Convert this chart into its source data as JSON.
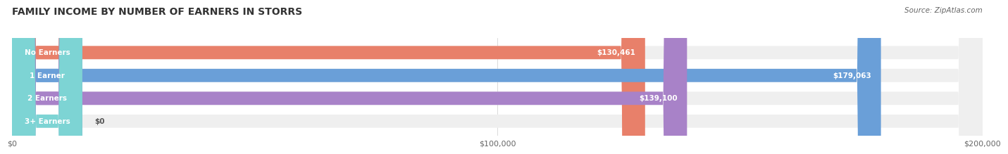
{
  "title": "FAMILY INCOME BY NUMBER OF EARNERS IN STORRS",
  "source": "Source: ZipAtlas.com",
  "categories": [
    "No Earners",
    "1 Earner",
    "2 Earners",
    "3+ Earners"
  ],
  "values": [
    130461,
    179063,
    139100,
    0
  ],
  "bar_colors": [
    "#E8806A",
    "#6A9FD8",
    "#A882C8",
    "#7DD4D4"
  ],
  "bar_bg_color": "#EFEFEF",
  "bar_labels": [
    "$130,461",
    "$179,063",
    "$139,100",
    "$0"
  ],
  "xlim": [
    0,
    200000
  ],
  "xticks": [
    0,
    100000,
    200000
  ],
  "xtick_labels": [
    "$0",
    "$100,000",
    "$200,000"
  ],
  "background_color": "#FFFFFF",
  "title_fontsize": 10,
  "bar_height": 0.58,
  "figsize": [
    14.06,
    2.33
  ]
}
